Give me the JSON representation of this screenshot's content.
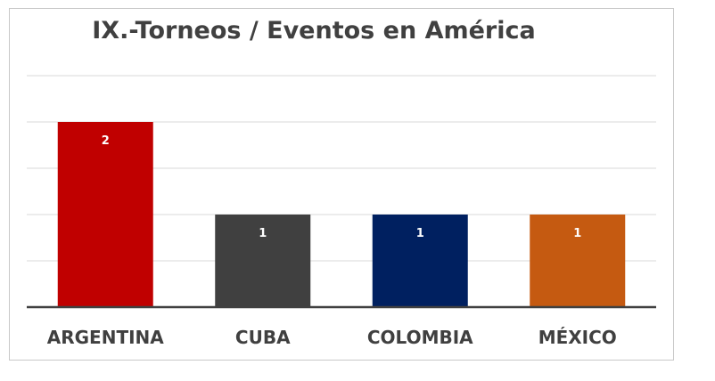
{
  "chart_data": {
    "type": "bar",
    "title": "IX.-Torneos / Eventos en América",
    "categories": [
      "ARGENTINA",
      "CUBA",
      "COLOMBIA",
      "MÉXICO"
    ],
    "values": [
      2,
      1,
      1,
      1
    ],
    "data_labels": [
      "2",
      "1",
      "1",
      "1"
    ],
    "colors": [
      "#C00000",
      "#404040",
      "#002060",
      "#C55A11"
    ],
    "xlabel": "",
    "ylabel": "",
    "ylim": [
      0,
      2.5
    ],
    "grid": true,
    "legend": "none"
  }
}
